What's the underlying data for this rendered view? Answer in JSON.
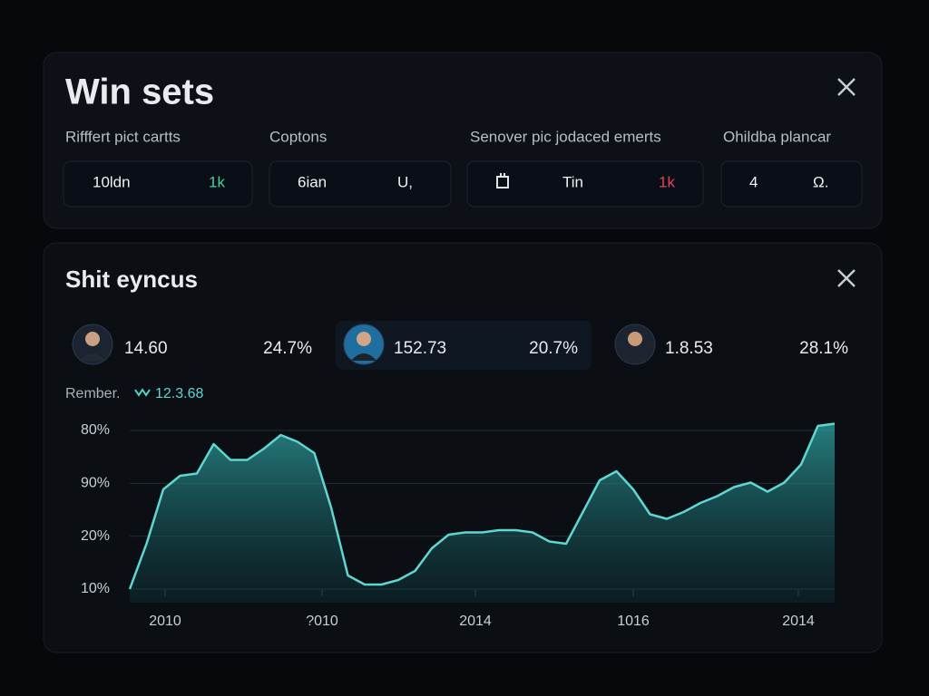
{
  "top_panel": {
    "title": "Win sets",
    "filters": [
      {
        "label": "Rifffert pict cartts",
        "value": "10ldn",
        "badge": "1k"
      },
      {
        "label": "Coptons",
        "value": "6ian",
        "badge": "U,"
      },
      {
        "label": "Senover pic jodaced emerts",
        "value": "Tin",
        "badge": "1k"
      },
      {
        "label": "Ohildba plancar",
        "value": "4",
        "badge": "Ω."
      }
    ]
  },
  "bottom_panel": {
    "title": "Shit eyncus",
    "people": [
      {
        "value": "14.60",
        "change": "24.7%"
      },
      {
        "value": "152.73",
        "change": "20.7%"
      },
      {
        "value": "1.8.53",
        "change": "28.1%"
      }
    ],
    "caption": "Rember.",
    "caption_value": "12.3.68"
  },
  "chart_data": {
    "type": "area",
    "color": "#5fd6d2",
    "values": [
      10,
      30,
      54,
      60,
      61,
      74,
      67,
      67,
      72,
      78,
      75,
      70,
      46,
      16,
      12,
      12,
      14,
      18,
      28,
      34,
      35,
      35,
      36,
      36,
      35,
      31,
      30,
      44,
      58,
      62,
      54,
      43,
      41,
      44,
      48,
      51,
      55,
      57,
      53,
      57,
      65,
      82,
      83
    ],
    "ylim": [
      10,
      80
    ],
    "y_axis_labels": [
      "80%",
      "90%",
      "20%",
      "10%"
    ],
    "x_axis_labels": [
      "2010",
      "?010",
      "2014",
      "1016",
      "2014"
    ],
    "grid": true
  }
}
